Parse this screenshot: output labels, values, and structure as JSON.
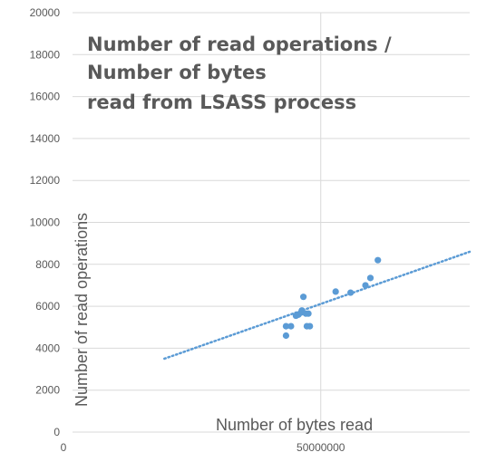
{
  "chart_data": {
    "type": "scatter",
    "title_lines": [
      "Number of read operations /",
      "Number of bytes",
      "read from LSASS process"
    ],
    "xlabel": "Number of bytes read",
    "ylabel": "Number of read operations",
    "xlim": [
      0,
      80000000
    ],
    "ylim": [
      0,
      20000
    ],
    "x_ticks": [
      0,
      50000000
    ],
    "y_ticks": [
      0,
      2000,
      4000,
      6000,
      8000,
      10000,
      12000,
      14000,
      16000,
      18000,
      20000
    ],
    "grid": true,
    "points": [
      {
        "x": 43000000,
        "y": 4600
      },
      {
        "x": 43000000,
        "y": 5050
      },
      {
        "x": 44000000,
        "y": 5050
      },
      {
        "x": 45000000,
        "y": 5550
      },
      {
        "x": 45500000,
        "y": 5600
      },
      {
        "x": 46000000,
        "y": 5700
      },
      {
        "x": 46200000,
        "y": 5800
      },
      {
        "x": 46500000,
        "y": 6450
      },
      {
        "x": 47000000,
        "y": 5650
      },
      {
        "x": 47200000,
        "y": 5050
      },
      {
        "x": 47500000,
        "y": 5650
      },
      {
        "x": 47800000,
        "y": 5050
      },
      {
        "x": 53000000,
        "y": 6700
      },
      {
        "x": 56000000,
        "y": 6650
      },
      {
        "x": 59000000,
        "y": 7000
      },
      {
        "x": 60000000,
        "y": 7350
      },
      {
        "x": 61500000,
        "y": 8200
      }
    ],
    "trendline": {
      "style": "dotted",
      "x": [
        18500000,
        80000000
      ],
      "y": [
        3500,
        8600
      ]
    },
    "colors": {
      "marker": "#5B9BD5",
      "grid": "#D9D9D9",
      "text": "#595959"
    }
  }
}
